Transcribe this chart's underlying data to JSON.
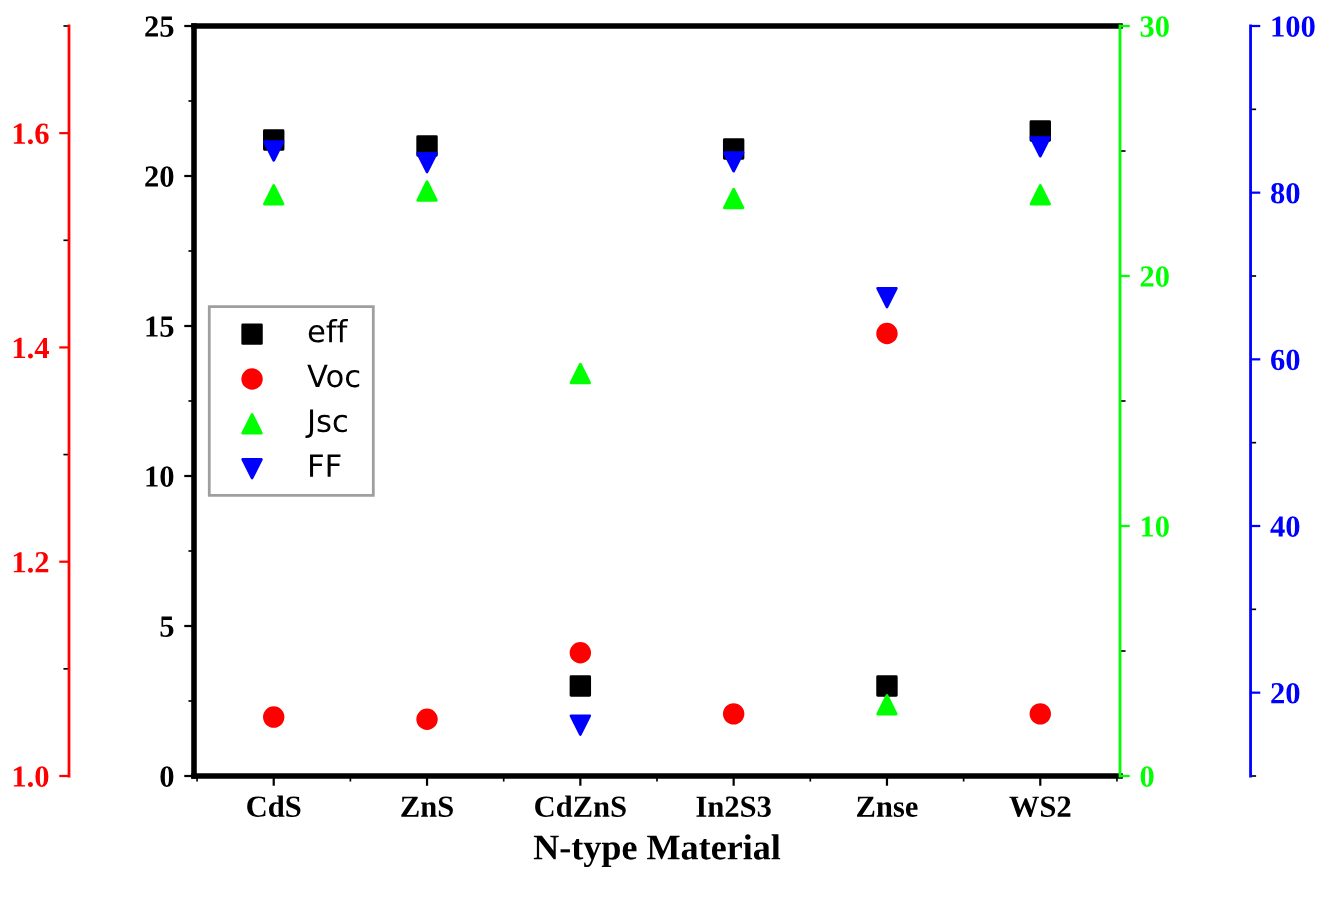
{
  "chart_data": [
    {
      "type": "scatter",
      "xlabel": "N-type Material",
      "categories": [
        "CdS",
        "ZnS",
        "CdZnS",
        "In2S3",
        "Znse",
        "WS2"
      ],
      "series": [
        {
          "name": "eff",
          "color": "#000000",
          "marker": "square",
          "axis": "y",
          "values": [
            21.2,
            21.0,
            3.0,
            20.9,
            3.0,
            21.5
          ]
        },
        {
          "name": "Voc",
          "color": "#ff0000",
          "marker": "circle",
          "axis": "y2",
          "values": [
            1.055,
            1.053,
            1.115,
            1.058,
            1.413,
            1.058
          ]
        },
        {
          "name": "Jsc",
          "color": "#00ff00",
          "marker": "triangle",
          "axis": "y3",
          "values": [
            23.25,
            23.4,
            16.1,
            23.1,
            2.85,
            23.25
          ]
        }
      ],
      "ylim": [
        0,
        25
      ],
      "yticks": [
        0,
        5,
        10,
        15,
        20,
        25
      ],
      "y2lim": [
        1.0,
        1.7
      ],
      "y2ticks": [
        {
          "value": 1.0,
          "label": "1.0"
        },
        1.2,
        1.4,
        1.6
      ],
      "y3lim": [
        0,
        30
      ],
      "y3ticks": [
        0,
        10,
        20,
        30
      ],
      "legend": "center left",
      "grid": false
    },
    {
      "type": "scatter",
      "categories": [
        null,
        null,
        null,
        null,
        null,
        null
      ],
      "series": [
        {
          "name": "FF",
          "color": "#0000ff",
          "values": [
            85.0,
            83.6,
            16.1,
            83.7,
            67.4,
            85.5
          ]
        }
      ],
      "ylim": [
        10,
        100
      ],
      "yticks": [
        20,
        40,
        60,
        80,
        100
      ],
      "tick_labels": "y",
      "grid": false
    }
  ]
}
